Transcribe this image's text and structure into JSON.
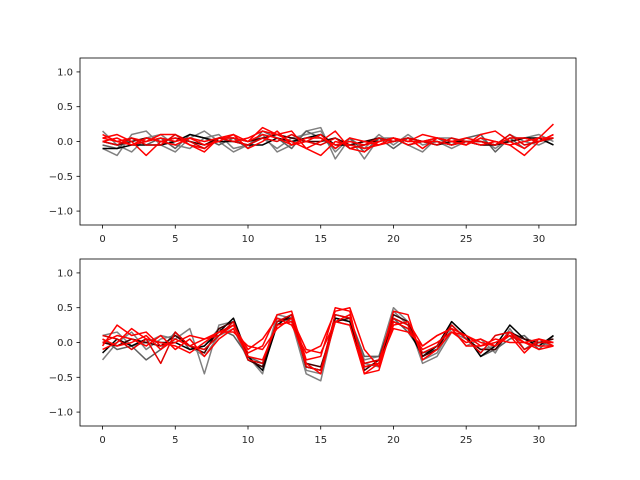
{
  "figure": {
    "background": "#ffffff"
  },
  "chart_data": [
    {
      "type": "line",
      "title": "",
      "xlabel": "",
      "ylabel": "",
      "xlim": [
        -1.55,
        32.55
      ],
      "ylim": [
        -1.2,
        1.2
      ],
      "xticks": [
        0,
        5,
        10,
        15,
        20,
        25,
        30
      ],
      "yticks": [
        1.0,
        0.5,
        0.0,
        -0.5,
        -1.0
      ],
      "xtick_labels": [
        "0",
        "5",
        "10",
        "15",
        "20",
        "25",
        "30"
      ],
      "ytick_labels": [
        "1.0",
        "0.5",
        "0.0",
        "−0.5",
        "−1.0"
      ],
      "grid": false,
      "series": [
        {
          "color": "#808080",
          "values": [
            0.15,
            -0.05,
            -0.15,
            0.05,
            0.1,
            -0.05,
            -0.1,
            0.05,
            0.1,
            -0.1,
            -0.05,
            0.05,
            -0.1,
            0.05,
            0.1,
            0.15,
            -0.15,
            0.05,
            -0.25,
            0.05,
            0.05,
            -0.05,
            -0.15,
            0.05,
            0.05,
            -0.05,
            0.05,
            -0.1,
            0.05,
            0.05,
            0.1,
            0.0
          ]
        },
        {
          "color": "#808080",
          "values": [
            -0.1,
            -0.2,
            0.1,
            0.15,
            -0.05,
            -0.15,
            0.05,
            0.15,
            0.0,
            -0.15,
            -0.05,
            0.1,
            -0.15,
            -0.05,
            0.15,
            0.2,
            -0.25,
            0.05,
            -0.1,
            0.1,
            -0.05,
            0.1,
            -0.05,
            0.0,
            -0.1,
            0.0,
            -0.05,
            -0.05,
            0.1,
            0.0,
            -0.05,
            0.05
          ]
        },
        {
          "color": "#606060",
          "values": [
            -0.05,
            -0.1,
            0.05,
            -0.05,
            0.05,
            -0.1,
            0.1,
            0.05,
            -0.05,
            0.05,
            -0.1,
            0.15,
            0.05,
            -0.1,
            0.15,
            0.05,
            -0.1,
            0.05,
            -0.15,
            0.05,
            -0.1,
            0.05,
            0.0,
            0.05,
            -0.05,
            0.05,
            0.1,
            -0.15,
            0.05,
            -0.1,
            0.05,
            -0.05
          ]
        },
        {
          "color": "#000000",
          "values": [
            -0.1,
            -0.1,
            -0.05,
            -0.05,
            -0.05,
            0.0,
            0.1,
            0.05,
            0.0,
            0.0,
            -0.05,
            -0.05,
            0.05,
            0.0,
            0.05,
            0.1,
            -0.05,
            -0.05,
            0.0,
            0.0,
            0.05,
            -0.05,
            0.0,
            0.0,
            -0.05,
            0.0,
            0.0,
            -0.05,
            0.0,
            0.05,
            0.05,
            -0.05
          ]
        },
        {
          "color": "#400000",
          "values": [
            0.0,
            -0.05,
            0.0,
            0.05,
            0.0,
            0.05,
            0.0,
            -0.05,
            0.05,
            0.05,
            0.0,
            0.05,
            0.1,
            0.05,
            0.0,
            0.0,
            0.05,
            -0.05,
            0.0,
            0.05,
            0.0,
            0.05,
            0.0,
            -0.05,
            0.0,
            0.0,
            -0.05,
            -0.05,
            0.0,
            0.05,
            0.0,
            0.05
          ]
        },
        {
          "color": "#ff0000",
          "values": [
            0.1,
            0.0,
            0.05,
            0.0,
            0.1,
            0.1,
            -0.05,
            -0.1,
            0.05,
            0.1,
            0.0,
            0.2,
            0.1,
            0.15,
            -0.1,
            0.0,
            0.15,
            -0.1,
            -0.15,
            0.0,
            0.05,
            0.0,
            0.1,
            0.05,
            0.0,
            -0.05,
            0.1,
            0.15,
            0.0,
            -0.1,
            0.05,
            0.25
          ]
        },
        {
          "color": "#ff0000",
          "values": [
            0.05,
            0.1,
            0.0,
            -0.2,
            0.0,
            0.05,
            -0.05,
            -0.15,
            0.05,
            0.0,
            0.05,
            0.15,
            0.1,
            0.0,
            -0.1,
            -0.2,
            0.0,
            -0.05,
            -0.1,
            -0.05,
            0.0,
            0.05,
            -0.1,
            0.05,
            0.0,
            0.05,
            0.0,
            -0.05,
            0.05,
            0.05,
            0.0,
            0.1
          ]
        },
        {
          "color": "#ff0000",
          "values": [
            0.05,
            0.0,
            -0.05,
            0.0,
            0.05,
            0.0,
            0.05,
            0.0,
            0.05,
            0.05,
            0.0,
            0.1,
            0.05,
            -0.05,
            0.05,
            0.05,
            -0.05,
            0.0,
            -0.05,
            0.0,
            0.05,
            0.0,
            0.0,
            0.0,
            -0.05,
            0.0,
            -0.05,
            0.0,
            -0.05,
            0.0,
            0.05,
            0.05
          ]
        },
        {
          "color": "#e00000",
          "values": [
            0.0,
            -0.05,
            0.05,
            -0.05,
            -0.05,
            0.1,
            0.0,
            -0.1,
            0.05,
            0.0,
            -0.05,
            0.05,
            0.0,
            0.1,
            0.0,
            -0.05,
            0.05,
            -0.1,
            -0.05,
            0.05,
            0.0,
            0.05,
            0.0,
            -0.05,
            0.05,
            0.0,
            0.0,
            -0.05,
            0.1,
            -0.05,
            0.0,
            0.05
          ]
        },
        {
          "color": "#ff0000",
          "values": [
            0.0,
            0.05,
            -0.05,
            0.05,
            0.0,
            -0.05,
            0.05,
            -0.05,
            0.0,
            0.1,
            -0.1,
            0.0,
            0.15,
            -0.05,
            0.0,
            0.1,
            -0.1,
            0.05,
            0.0,
            -0.05,
            0.05,
            -0.05,
            0.0,
            0.05,
            0.0,
            -0.05,
            0.05,
            0.0,
            -0.05,
            -0.2,
            0.0,
            0.1
          ]
        }
      ]
    },
    {
      "type": "line",
      "title": "",
      "xlabel": "",
      "ylabel": "",
      "xlim": [
        -1.55,
        32.55
      ],
      "ylim": [
        -1.2,
        1.2
      ],
      "xticks": [
        0,
        5,
        10,
        15,
        20,
        25,
        30
      ],
      "yticks": [
        1.0,
        0.5,
        0.0,
        -0.5,
        -1.0
      ],
      "xtick_labels": [
        "0",
        "5",
        "10",
        "15",
        "20",
        "25",
        "30"
      ],
      "ytick_labels": [
        "1.0",
        "0.5",
        "0.0",
        "−0.5",
        "−1.0"
      ],
      "grid": false,
      "series": [
        {
          "color": "#808080",
          "values": [
            0.1,
            0.15,
            -0.05,
            0.0,
            0.1,
            0.05,
            0.2,
            -0.45,
            0.25,
            0.3,
            -0.2,
            -0.45,
            0.35,
            0.3,
            -0.45,
            -0.55,
            0.35,
            0.3,
            -0.25,
            -0.2,
            0.5,
            0.3,
            -0.3,
            -0.2,
            0.15,
            0.05,
            -0.1,
            -0.05,
            0.1,
            0.05,
            0.0,
            -0.05
          ]
        },
        {
          "color": "#808080",
          "values": [
            -0.25,
            0.0,
            0.15,
            -0.1,
            0.05,
            0.1,
            -0.05,
            -0.2,
            0.1,
            0.2,
            -0.25,
            -0.35,
            0.4,
            0.35,
            -0.4,
            -0.45,
            0.3,
            0.25,
            -0.3,
            -0.35,
            0.45,
            0.25,
            -0.25,
            -0.15,
            0.2,
            -0.05,
            0.05,
            -0.15,
            0.2,
            -0.1,
            0.05,
            -0.05
          ]
        },
        {
          "color": "#606060",
          "values": [
            0.05,
            -0.1,
            -0.05,
            -0.25,
            -0.1,
            0.15,
            -0.1,
            -0.05,
            0.2,
            0.1,
            -0.2,
            -0.3,
            0.3,
            0.4,
            -0.35,
            -0.4,
            0.4,
            0.35,
            -0.2,
            -0.2,
            0.35,
            0.15,
            -0.15,
            -0.1,
            0.3,
            0.1,
            -0.2,
            -0.1,
            0.05,
            0.1,
            -0.1,
            0.1
          ]
        },
        {
          "color": "#000000",
          "values": [
            -0.15,
            0.05,
            -0.05,
            0.05,
            0.0,
            0.0,
            -0.1,
            -0.05,
            0.15,
            0.35,
            -0.2,
            -0.4,
            0.25,
            0.4,
            -0.35,
            -0.4,
            0.35,
            0.3,
            -0.35,
            -0.3,
            0.3,
            0.2,
            -0.2,
            -0.05,
            0.3,
            0.1,
            -0.2,
            -0.05,
            0.25,
            0.05,
            -0.05,
            0.1
          ]
        },
        {
          "color": "#400000",
          "values": [
            0.0,
            -0.05,
            0.05,
            0.0,
            -0.05,
            0.1,
            -0.05,
            -0.15,
            0.2,
            0.3,
            -0.25,
            -0.35,
            0.3,
            0.35,
            -0.3,
            -0.35,
            0.3,
            0.35,
            -0.4,
            -0.25,
            0.4,
            0.3,
            -0.2,
            -0.1,
            0.25,
            0.05,
            -0.1,
            -0.1,
            0.15,
            0.05,
            0.0,
            0.05
          ]
        },
        {
          "color": "#ff0000",
          "values": [
            -0.05,
            0.25,
            0.1,
            0.15,
            -0.05,
            0.0,
            0.1,
            0.05,
            0.15,
            0.25,
            -0.1,
            0.05,
            0.35,
            0.25,
            -0.15,
            -0.05,
            0.45,
            0.5,
            -0.1,
            -0.35,
            0.25,
            0.3,
            -0.05,
            0.1,
            0.2,
            0.1,
            -0.05,
            0.0,
            0.1,
            0.0,
            -0.05,
            -0.05
          ]
        },
        {
          "color": "#ff0000",
          "values": [
            0.05,
            -0.05,
            0.0,
            0.1,
            -0.1,
            0.05,
            -0.05,
            0.05,
            0.1,
            0.25,
            -0.15,
            -0.05,
            0.4,
            0.45,
            -0.25,
            -0.2,
            0.5,
            0.45,
            -0.45,
            -0.4,
            0.3,
            0.2,
            -0.1,
            0.0,
            0.15,
            0.0,
            0.05,
            -0.05,
            0.1,
            -0.15,
            0.05,
            -0.05
          ]
        },
        {
          "color": "#e00000",
          "values": [
            0.1,
            0.05,
            -0.1,
            0.05,
            -0.3,
            0.15,
            -0.05,
            -0.1,
            0.1,
            0.3,
            -0.25,
            -0.3,
            0.3,
            0.4,
            -0.35,
            -0.4,
            0.4,
            0.35,
            -0.3,
            -0.25,
            0.35,
            0.25,
            -0.15,
            -0.05,
            0.25,
            0.05,
            -0.15,
            0.1,
            0.15,
            -0.1,
            0.0,
            0.0
          ]
        },
        {
          "color": "#ff0000",
          "values": [
            0.0,
            0.1,
            0.05,
            -0.05,
            0.1,
            -0.1,
            0.05,
            -0.2,
            0.05,
            0.2,
            -0.2,
            -0.25,
            0.25,
            0.3,
            -0.3,
            -0.45,
            0.3,
            0.25,
            -0.45,
            -0.3,
            0.2,
            0.15,
            -0.05,
            0.1,
            0.2,
            -0.05,
            -0.05,
            0.05,
            0.0,
            0.0,
            0.05,
            0.0
          ]
        },
        {
          "color": "#ff0000",
          "values": [
            -0.1,
            0.0,
            0.2,
            0.05,
            0.0,
            -0.05,
            -0.15,
            0.0,
            0.15,
            0.15,
            -0.05,
            -0.1,
            0.2,
            0.35,
            -0.1,
            -0.15,
            0.3,
            0.4,
            -0.35,
            -0.3,
            0.45,
            0.4,
            -0.25,
            -0.1,
            0.15,
            0.1,
            0.0,
            -0.05,
            0.15,
            0.0,
            -0.1,
            -0.05
          ]
        }
      ]
    }
  ]
}
